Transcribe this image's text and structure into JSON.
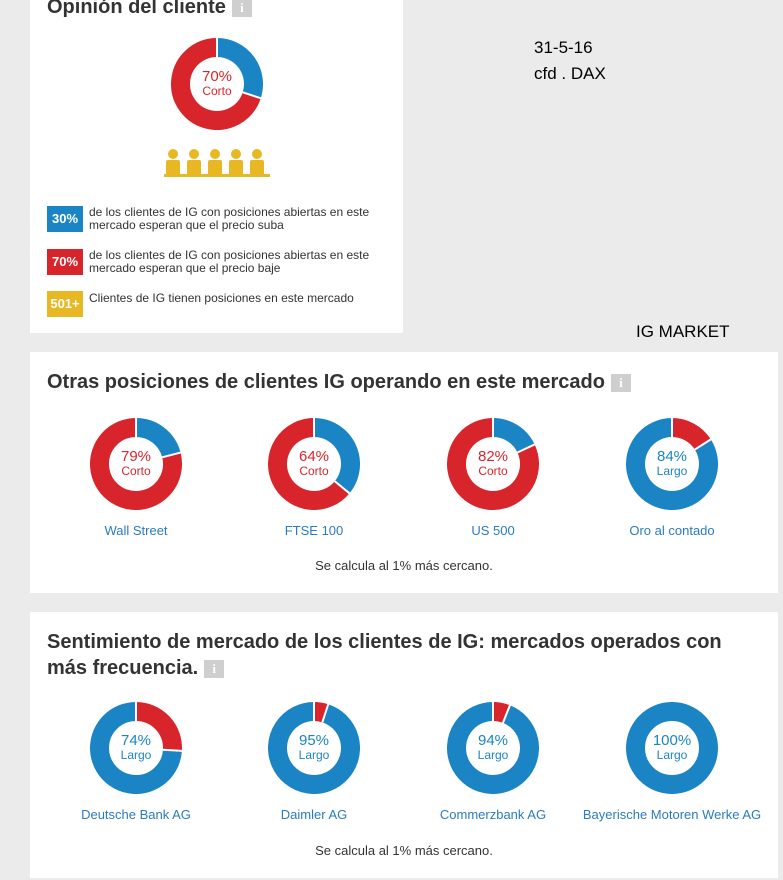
{
  "opinion": {
    "title": "Opinión del cliente",
    "info_label": "i",
    "donut": {
      "pct": 70,
      "pct_label": "70%",
      "direction": "Corto"
    },
    "legend": [
      {
        "badge": "30%",
        "color": "#1a84c4",
        "text": "de los clientes de IG con posiciones abiertas en este mercado esperan que el precio suba"
      },
      {
        "badge": "70%",
        "color": "#d8252b",
        "text": "de los clientes de IG con posiciones abiertas en este mercado esperan que el precio baje"
      },
      {
        "badge": "501+",
        "color": "#e8b824",
        "text": "Clientes de IG tienen posiciones en este mercado"
      }
    ]
  },
  "annotations": {
    "date": "31-5-16",
    "instrument": "cfd .  DAX",
    "broker": "IG MARKET"
  },
  "others": {
    "title": "Otras posiciones de clientes IG operando en este mercado",
    "info_label": "i",
    "markets": [
      {
        "name": "Wall Street",
        "pct": 79,
        "pct_label": "79%",
        "direction": "Corto"
      },
      {
        "name": "FTSE 100",
        "pct": 64,
        "pct_label": "64%",
        "direction": "Corto"
      },
      {
        "name": "US 500",
        "pct": 82,
        "pct_label": "82%",
        "direction": "Corto"
      },
      {
        "name": "Oro al contado",
        "pct": 84,
        "pct_label": "84%",
        "direction": "Largo"
      }
    ],
    "note": "Se calcula al 1% más cercano."
  },
  "sentiment": {
    "title_line1": "Sentimiento de mercado de los clientes de IG: mercados operados con",
    "title_line2": "más frecuencia.",
    "info_label": "i",
    "markets": [
      {
        "name": "Deutsche Bank AG",
        "pct": 74,
        "pct_label": "74%",
        "direction": "Largo"
      },
      {
        "name": "Daimler AG",
        "pct": 95,
        "pct_label": "95%",
        "direction": "Largo"
      },
      {
        "name": "Commerzbank AG",
        "pct": 94,
        "pct_label": "94%",
        "direction": "Largo"
      },
      {
        "name": "Bayerische Motoren Werke AG",
        "pct": 100,
        "pct_label": "100%",
        "direction": "Largo"
      }
    ],
    "note": "Se calcula al 1% más cercano."
  },
  "colors": {
    "long": "#1a84c4",
    "short": "#d8252b",
    "clients": "#e8b824"
  }
}
